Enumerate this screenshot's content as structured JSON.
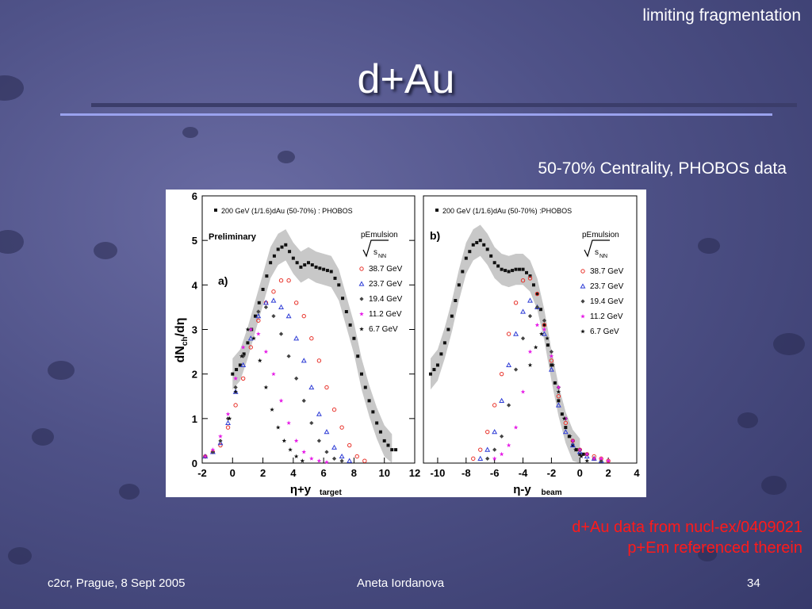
{
  "slide": {
    "top_note": "limiting fragmentation",
    "title": "d+Au",
    "caption": "50-70% Centrality, PHOBOS data",
    "refs": [
      "d+Au data from nucl-ex/0409021",
      "p+Em referenced therein"
    ],
    "footer_left": "c2cr, Prague, 8 Sept 2005",
    "footer_mid": "Aneta Iordanova",
    "footer_right": "34"
  },
  "colors": {
    "red": "#e8322a",
    "blue": "#2f3dd6",
    "dark": "#444444",
    "magenta": "#e619e6",
    "black": "#111111",
    "band": "#c8c8c8"
  },
  "chart_data": [
    {
      "type": "scatter",
      "panel_label": "a)",
      "preliminary": "Preliminary",
      "xlabel": "η+y",
      "xlabel_sub": "target",
      "ylabel": "dN",
      "ylabel_sub": "ch",
      "ylabel_tail": "/dη",
      "xlim": [
        -2,
        12
      ],
      "ylim": [
        0,
        6
      ],
      "xticks": [
        "-2",
        "0",
        "2",
        "4",
        "6",
        "8",
        "10",
        "12"
      ],
      "yticks": [
        "0",
        "1",
        "2",
        "3",
        "4",
        "5",
        "6"
      ],
      "legend_top": "200 GeV (1/1.6)dAu (50-70%) : PHOBOS",
      "legend_head": "pEmulsion",
      "legend_sqrt": "s",
      "legend_sqrt_sub": "NN",
      "series": [
        {
          "name": "200 GeV (1/1.6)dAu (50-70%) : PHOBOS",
          "marker": "square",
          "color": "black",
          "band": true,
          "x": [
            0,
            0.5,
            1,
            1.5,
            2,
            2.5,
            3,
            3.5,
            4,
            4.5,
            5,
            5.5,
            6,
            6.5,
            7,
            7.5,
            8,
            8.5,
            9,
            9.5,
            10,
            10.5
          ],
          "y": [
            2.0,
            2.2,
            2.7,
            3.3,
            3.9,
            4.5,
            4.8,
            4.9,
            4.6,
            4.4,
            4.5,
            4.4,
            4.35,
            4.3,
            4.0,
            3.4,
            2.8,
            2.0,
            1.4,
            0.9,
            0.5,
            0.3
          ]
        },
        {
          "name": "38.7 GeV",
          "marker": "circle",
          "color": "red",
          "x": [
            -1.8,
            -1.3,
            -0.8,
            -0.3,
            0.2,
            0.7,
            1.2,
            1.7,
            2.2,
            2.7,
            3.2,
            3.7,
            4.2,
            4.7,
            5.2,
            5.7,
            6.2,
            6.7,
            7.2,
            7.7,
            8.2,
            8.7
          ],
          "y": [
            0.15,
            0.25,
            0.4,
            0.8,
            1.3,
            1.9,
            2.6,
            3.2,
            3.6,
            3.85,
            4.1,
            4.1,
            3.6,
            3.3,
            2.8,
            2.3,
            1.7,
            1.2,
            0.8,
            0.4,
            0.15,
            0.05
          ]
        },
        {
          "name": "23.7 GeV",
          "marker": "triangle",
          "color": "blue",
          "x": [
            -1.8,
            -1.3,
            -0.8,
            -0.3,
            0.2,
            0.7,
            1.2,
            1.7,
            2.2,
            2.7,
            3.2,
            3.7,
            4.2,
            4.7,
            5.2,
            5.7,
            6.2,
            6.7,
            7.2,
            7.7
          ],
          "y": [
            0.15,
            0.25,
            0.45,
            0.9,
            1.6,
            2.2,
            2.8,
            3.3,
            3.6,
            3.65,
            3.5,
            3.3,
            2.8,
            2.3,
            1.7,
            1.1,
            0.7,
            0.35,
            0.15,
            0.05
          ]
        },
        {
          "name": "19.4 GeV",
          "marker": "diamond",
          "color": "dark",
          "x": [
            -1.8,
            -1.3,
            -0.8,
            -0.3,
            0.2,
            0.7,
            1.2,
            1.7,
            2.2,
            2.7,
            3.2,
            3.7,
            4.2,
            4.7,
            5.2,
            5.7,
            6.2,
            6.7,
            7.2
          ],
          "y": [
            0.15,
            0.25,
            0.5,
            1.0,
            1.7,
            2.4,
            3.0,
            3.4,
            3.5,
            3.3,
            2.9,
            2.4,
            1.9,
            1.4,
            0.9,
            0.5,
            0.25,
            0.1,
            0.05
          ]
        },
        {
          "name": "11.2 GeV",
          "marker": "star",
          "color": "magenta",
          "x": [
            -1.8,
            -1.3,
            -0.8,
            -0.3,
            0.2,
            0.7,
            1.2,
            1.7,
            2.2,
            2.7,
            3.2,
            3.7,
            4.2,
            4.7,
            5.2,
            5.7,
            6.2
          ],
          "y": [
            0.15,
            0.3,
            0.6,
            1.1,
            1.9,
            2.6,
            3.0,
            2.9,
            2.5,
            2.0,
            1.4,
            0.9,
            0.5,
            0.25,
            0.1,
            0.05,
            0.02
          ]
        },
        {
          "name": "6.7 GeV",
          "marker": "star",
          "color": "black",
          "x": [
            -0.2,
            0.2,
            0.6,
            1.0,
            1.4,
            1.8,
            2.2,
            2.6,
            3.0,
            3.4,
            3.8,
            4.2,
            4.6
          ],
          "y": [
            1.0,
            1.6,
            2.4,
            3.0,
            2.8,
            2.3,
            1.7,
            1.2,
            0.8,
            0.5,
            0.3,
            0.15,
            0.05
          ]
        }
      ]
    },
    {
      "type": "scatter",
      "panel_label": "b)",
      "xlabel": "η-y",
      "xlabel_sub": "beam",
      "xlim": [
        -11,
        4
      ],
      "ylim": [
        0,
        6
      ],
      "xticks": [
        "-10",
        "-8",
        "-6",
        "-4",
        "-2",
        "0",
        "2",
        "4"
      ],
      "legend_top": "200 GeV (1/1.6)dAu (50-70%) :PHOBOS",
      "legend_head": "pEmulsion",
      "legend_sqrt": "s",
      "legend_sqrt_sub": "NN",
      "series": [
        {
          "name": "200 GeV (1/1.6)dAu (50-70%) :PHOBOS",
          "marker": "square",
          "color": "black",
          "band": true,
          "x": [
            -10.5,
            -10,
            -9.5,
            -9,
            -8.5,
            -8,
            -7.5,
            -7,
            -6.5,
            -6,
            -5.5,
            -5,
            -4.5,
            -4,
            -3.5,
            -3,
            -2.5,
            -2,
            -1.5,
            -1,
            -0.5,
            0
          ],
          "y": [
            2.0,
            2.2,
            2.7,
            3.3,
            4.0,
            4.6,
            4.9,
            5.0,
            4.8,
            4.5,
            4.35,
            4.3,
            4.35,
            4.35,
            4.2,
            3.8,
            3.1,
            2.2,
            1.4,
            0.8,
            0.4,
            0.2
          ]
        },
        {
          "name": "38.7 GeV",
          "marker": "circle",
          "color": "red",
          "x": [
            -7.5,
            -7,
            -6.5,
            -6,
            -5.5,
            -5,
            -4.5,
            -4,
            -3.5,
            -3,
            -2.5,
            -2,
            -1.5,
            -1,
            -0.5,
            0,
            0.5,
            1,
            1.5,
            2
          ],
          "y": [
            0.1,
            0.3,
            0.7,
            1.3,
            2.0,
            2.9,
            3.6,
            4.1,
            4.15,
            3.8,
            3.1,
            2.3,
            1.5,
            0.9,
            0.5,
            0.3,
            0.2,
            0.15,
            0.1,
            0.05
          ]
        },
        {
          "name": "23.7 GeV",
          "marker": "triangle",
          "color": "blue",
          "x": [
            -7,
            -6.5,
            -6,
            -5.5,
            -5,
            -4.5,
            -4,
            -3.5,
            -3,
            -2.5,
            -2,
            -1.5,
            -1,
            -0.5,
            0,
            0.5,
            1,
            1.5
          ],
          "y": [
            0.1,
            0.3,
            0.7,
            1.4,
            2.2,
            2.9,
            3.4,
            3.65,
            3.5,
            2.9,
            2.1,
            1.3,
            0.7,
            0.4,
            0.25,
            0.15,
            0.1,
            0.05
          ]
        },
        {
          "name": "19.4 GeV",
          "marker": "diamond",
          "color": "dark",
          "x": [
            -6.5,
            -6,
            -5.5,
            -5,
            -4.5,
            -4,
            -3.5,
            -3,
            -2.5,
            -2,
            -1.5,
            -1,
            -0.5,
            0,
            0.5,
            1,
            1.5
          ],
          "y": [
            0.1,
            0.3,
            0.6,
            1.3,
            2.1,
            2.8,
            3.3,
            3.5,
            3.2,
            2.5,
            1.7,
            1.0,
            0.5,
            0.3,
            0.2,
            0.1,
            0.05
          ]
        },
        {
          "name": "11.2 GeV",
          "marker": "star",
          "color": "magenta",
          "x": [
            -6,
            -5.5,
            -5,
            -4.5,
            -4,
            -3.5,
            -3,
            -2.5,
            -2,
            -1.5,
            -1,
            -0.5,
            0,
            0.5,
            1,
            1.5,
            2
          ],
          "y": [
            0.1,
            0.2,
            0.4,
            0.8,
            1.6,
            2.5,
            3.1,
            3.0,
            2.4,
            1.7,
            1.0,
            0.5,
            0.3,
            0.2,
            0.1,
            0.1,
            0.05
          ]
        },
        {
          "name": "6.7 GeV",
          "marker": "star",
          "color": "black",
          "x": [
            -3.5,
            -3.1,
            -2.7,
            -2.3,
            -1.9,
            -1.5,
            -1.1,
            -0.7,
            -0.3,
            0.1,
            0.5
          ],
          "y": [
            2.2,
            2.6,
            2.9,
            2.8,
            2.2,
            1.6,
            1.0,
            0.6,
            0.3,
            0.15,
            0.05
          ]
        }
      ]
    }
  ]
}
